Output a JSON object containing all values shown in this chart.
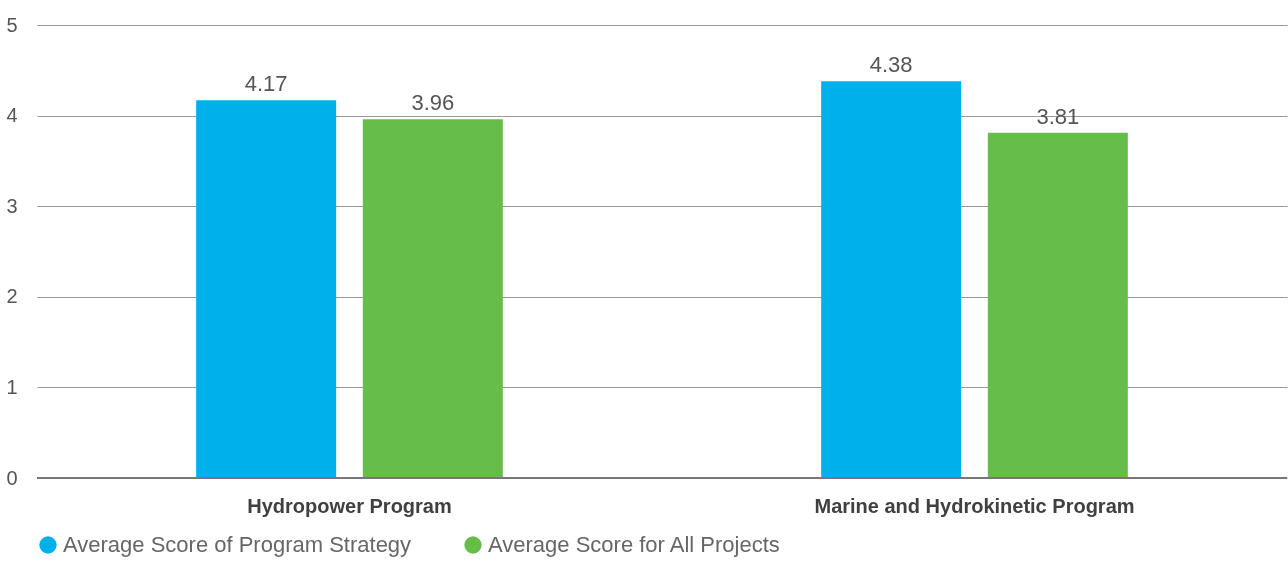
{
  "chart_data": {
    "type": "bar",
    "categories": [
      "Hydropower Program",
      "Marine and Hydrokinetic Program"
    ],
    "series": [
      {
        "name": "Average Score of Program Strategy",
        "color": "#00b0ea",
        "values": [
          4.17,
          4.38
        ]
      },
      {
        "name": "Average Score for All Projects",
        "color": "#67bd4a",
        "values": [
          3.96,
          3.81
        ]
      }
    ],
    "ylim": [
      0,
      5
    ],
    "yticks": [
      0,
      1,
      2,
      3,
      4,
      5
    ],
    "grid": "y",
    "legend": "bottom left",
    "data_labels": true
  }
}
